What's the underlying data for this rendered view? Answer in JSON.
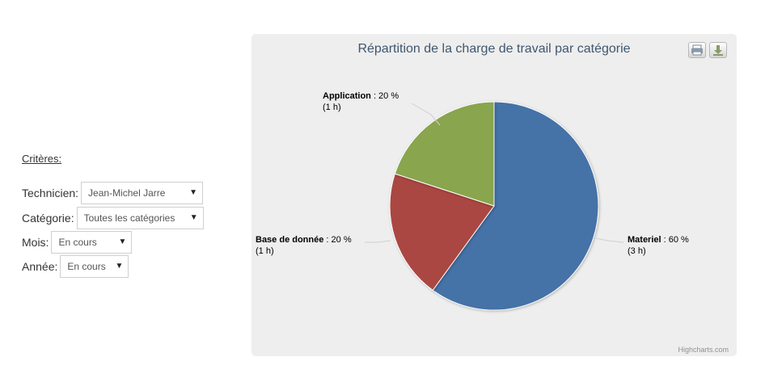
{
  "filters": {
    "title": "Critères:",
    "technicien": {
      "label": "Technicien:",
      "value": "Jean-Michel Jarre"
    },
    "categorie": {
      "label": "Catégorie:",
      "value": "Toutes les catégories"
    },
    "mois": {
      "label": "Mois:",
      "value": "En cours"
    },
    "annee": {
      "label": "Année:",
      "value": "En cours"
    }
  },
  "toolbar": {
    "print_icon": "printer-icon",
    "download_icon": "download-icon"
  },
  "credits": "Highcharts.com",
  "chart_data": {
    "type": "pie",
    "title": "Répartition de la charge de travail par catégorie",
    "slices": [
      {
        "name": "Materiel",
        "percent": 60,
        "hours": "3 h",
        "color": "#4572a7"
      },
      {
        "name": "Base de donnée",
        "percent": 20,
        "hours": "1 h",
        "color": "#aa4643"
      },
      {
        "name": "Application",
        "percent": 20,
        "hours": "1 h",
        "color": "#89a54e"
      }
    ]
  }
}
